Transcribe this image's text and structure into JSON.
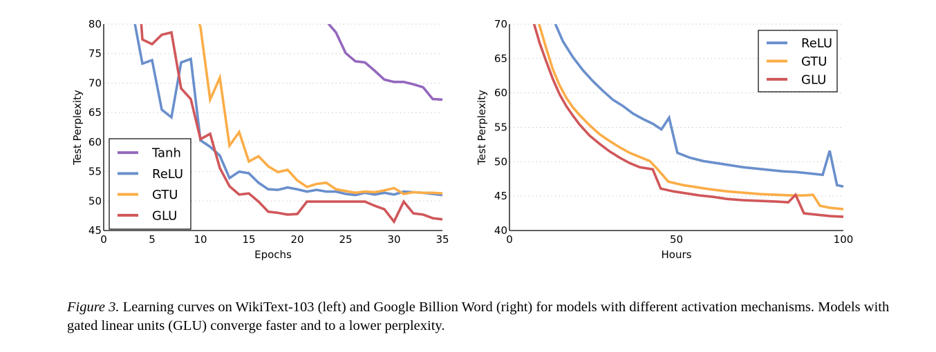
{
  "caption": {
    "label": "Figure 3.",
    "text": " Learning curves on WikiText-103 (left) and Google Billion Word (right) for models with different activation mechanisms. Models with gated linear units (GLU) converge faster and to a lower perplexity."
  },
  "chart_data": [
    {
      "type": "line",
      "title": "",
      "xlabel": "Epochs",
      "ylabel": "Test Perplexity",
      "xlim": [
        0,
        35
      ],
      "ylim": [
        45,
        80
      ],
      "xticks": [
        0,
        5,
        10,
        15,
        20,
        25,
        30,
        35
      ],
      "yticks": [
        45,
        50,
        55,
        60,
        65,
        70,
        75,
        80
      ],
      "grid": "horizontal dotted",
      "legend": "bottom-left",
      "series": [
        {
          "name": "Tanh",
          "color": "#9467bd",
          "x": [
            23,
            24,
            25,
            26,
            27,
            28,
            29,
            30,
            31,
            32,
            33,
            34,
            35
          ],
          "y": [
            80.5,
            78.6,
            75.1,
            73.7,
            73.5,
            72.1,
            70.6,
            70.2,
            70.2,
            69.8,
            69.3,
            67.3,
            67.2
          ]
        },
        {
          "name": "ReLU",
          "color": "#6a8fcc",
          "x": [
            3,
            4,
            5,
            6,
            7,
            8,
            9,
            10,
            11,
            12,
            13,
            14,
            15,
            16,
            17,
            18,
            19,
            20,
            21,
            22,
            23,
            24,
            25,
            26,
            27,
            28,
            29,
            30,
            31,
            32,
            33,
            34,
            35
          ],
          "y": [
            82,
            73.3,
            73.9,
            65.5,
            64.2,
            73.5,
            74.1,
            60.3,
            59.2,
            57.7,
            53.9,
            55.0,
            54.7,
            53.1,
            52.0,
            51.9,
            52.3,
            52.0,
            51.6,
            51.9,
            51.6,
            51.6,
            51.2,
            51.0,
            51.4,
            51.1,
            51.4,
            51.1,
            51.6,
            51.5,
            51.4,
            51.2,
            51.0
          ]
        },
        {
          "name": "GTU",
          "color": "#fbad47",
          "x": [
            9.5,
            10,
            11,
            12,
            13,
            14,
            15,
            16,
            17,
            18,
            19,
            20,
            21,
            22,
            23,
            24,
            25,
            26,
            27,
            28,
            29,
            30,
            31,
            32,
            33,
            34,
            35
          ],
          "y": [
            82,
            79.5,
            67.2,
            70.9,
            59.4,
            61.7,
            56.7,
            57.6,
            55.9,
            54.9,
            55.3,
            53.5,
            52.4,
            52.9,
            53.1,
            52.0,
            51.7,
            51.4,
            51.6,
            51.5,
            51.8,
            52.2,
            51.2,
            51.5,
            51.4,
            51.4,
            51.3
          ]
        },
        {
          "name": "GLU",
          "color": "#d0575a",
          "x": [
            3.8,
            4,
            5,
            6,
            7,
            8,
            9,
            10,
            11,
            12,
            13,
            14,
            15,
            16,
            17,
            18,
            19,
            20,
            21,
            22,
            23,
            24,
            25,
            26,
            27,
            28,
            29,
            30,
            31,
            32,
            33,
            34,
            35
          ],
          "y": [
            82,
            77.4,
            76.6,
            78.2,
            78.6,
            69.1,
            67.3,
            60.5,
            61.4,
            55.6,
            52.5,
            51.1,
            51.3,
            49.9,
            48.2,
            48.0,
            47.7,
            47.8,
            49.9,
            49.9,
            49.9,
            49.9,
            49.9,
            49.9,
            49.9,
            49.2,
            48.6,
            46.5,
            49.9,
            47.9,
            47.7,
            47.1,
            46.9
          ]
        }
      ]
    },
    {
      "type": "line",
      "title": "",
      "xlabel": "Hours",
      "ylabel": "Test Perplexity",
      "xlim": [
        0,
        100
      ],
      "ylim": [
        40,
        70
      ],
      "xticks": [
        0,
        50,
        100
      ],
      "yticks": [
        40,
        45,
        50,
        55,
        60,
        65,
        70
      ],
      "grid": "horizontal dotted",
      "legend": "top-right",
      "series": [
        {
          "name": "ReLU",
          "color": "#6a8fcc",
          "x": [
            13.5,
            16,
            19,
            22,
            25,
            28,
            31,
            34,
            37,
            40,
            43,
            45.5,
            47.8,
            50.3,
            54,
            58,
            62,
            66,
            70,
            74,
            78,
            82,
            86,
            90,
            93.8,
            95.9,
            98.1,
            100
          ],
          "y": [
            70.3,
            67.5,
            65.2,
            63.3,
            61.7,
            60.3,
            59.0,
            58.1,
            57.0,
            56.2,
            55.5,
            54.7,
            56.4,
            51.3,
            50.6,
            50.1,
            49.8,
            49.5,
            49.2,
            49.0,
            48.8,
            48.6,
            48.5,
            48.3,
            48.1,
            51.6,
            46.6,
            46.4
          ]
        },
        {
          "name": "GTU",
          "color": "#fbad47",
          "x": [
            8.7,
            11,
            13,
            15,
            17,
            19,
            21,
            24,
            27,
            30,
            33,
            36,
            39,
            42,
            44,
            47.6,
            52,
            56,
            60,
            65,
            70,
            75,
            80,
            85,
            88,
            90.9,
            93,
            96,
            100
          ],
          "y": [
            70.3,
            66.5,
            63.4,
            61.1,
            59.3,
            57.9,
            56.8,
            55.3,
            54.0,
            53.0,
            52.1,
            51.3,
            50.7,
            50.1,
            49.1,
            47.1,
            46.6,
            46.3,
            46.0,
            45.7,
            45.5,
            45.3,
            45.2,
            45.1,
            45.1,
            45.2,
            43.6,
            43.3,
            43.1
          ]
        },
        {
          "name": "GLU",
          "color": "#d0575a",
          "x": [
            7.2,
            9,
            11,
            13,
            15,
            17,
            19,
            21,
            24,
            27,
            30,
            33,
            36,
            39,
            42.9,
            45.3,
            49,
            53,
            57,
            61,
            65,
            70,
            75,
            80,
            83.5,
            85.7,
            88.2,
            92,
            96,
            100
          ],
          "y": [
            70.3,
            67.3,
            64.6,
            62.0,
            59.8,
            58.1,
            56.7,
            55.4,
            53.8,
            52.6,
            51.5,
            50.6,
            49.8,
            49.2,
            48.9,
            46.1,
            45.7,
            45.4,
            45.1,
            44.9,
            44.6,
            44.4,
            44.3,
            44.2,
            44.1,
            45.2,
            42.5,
            42.3,
            42.1,
            42.0
          ]
        }
      ]
    }
  ]
}
